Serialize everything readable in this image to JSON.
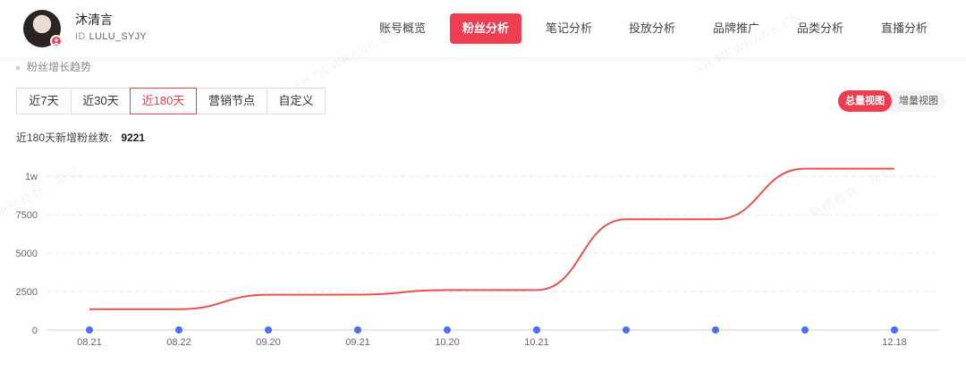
{
  "profile": {
    "name": "沐清言",
    "id_label": "ID",
    "id_value": "LULU_SYJY"
  },
  "nav": {
    "tabs": [
      {
        "label": "账号概览",
        "active": false
      },
      {
        "label": "粉丝分析",
        "active": true
      },
      {
        "label": "笔记分析",
        "active": false
      },
      {
        "label": "投放分析",
        "active": false
      },
      {
        "label": "品牌推广",
        "active": false
      },
      {
        "label": "品类分析",
        "active": false
      },
      {
        "label": "直播分析",
        "active": false
      }
    ]
  },
  "section_title": "粉丝增长趋势",
  "range_buttons": [
    {
      "label": "近7天",
      "active": false
    },
    {
      "label": "近30天",
      "active": false
    },
    {
      "label": "近180天",
      "active": true
    },
    {
      "label": "营销节点",
      "active": false
    },
    {
      "label": "自定义",
      "active": false
    }
  ],
  "view_toggle": {
    "total_label": "总量视图",
    "increment_label": "增量视图",
    "active": "total"
  },
  "summary": {
    "label": "近180天新增粉丝数:",
    "value": "9221"
  },
  "watermarks": [
    "XH.NEWRANK.CN",
    "新榜有数 · 新红"
  ],
  "colors": {
    "accent": "#ee3d50",
    "line": "#e8534f",
    "marker": "#4a6cf7",
    "grid": "#e6e6e6"
  },
  "chart_data": {
    "type": "line",
    "title": "",
    "xlabel": "",
    "ylabel": "",
    "ylim": [
      0,
      11000
    ],
    "yticks": [
      0,
      2500,
      5000,
      7500,
      10000
    ],
    "ytick_labels": [
      "0",
      "2500",
      "5000",
      "7500",
      "1w"
    ],
    "x_tick_labels": [
      "08.21",
      "08.22",
      "09.20",
      "09.21",
      "10.20",
      "10.21",
      "",
      "",
      "",
      "12.18"
    ],
    "grid": "horizontal dashed",
    "series": [
      {
        "values": [
          1350,
          1350,
          2290,
          2300,
          2600,
          2600,
          7200,
          7200,
          10500,
          10500
        ]
      }
    ]
  }
}
